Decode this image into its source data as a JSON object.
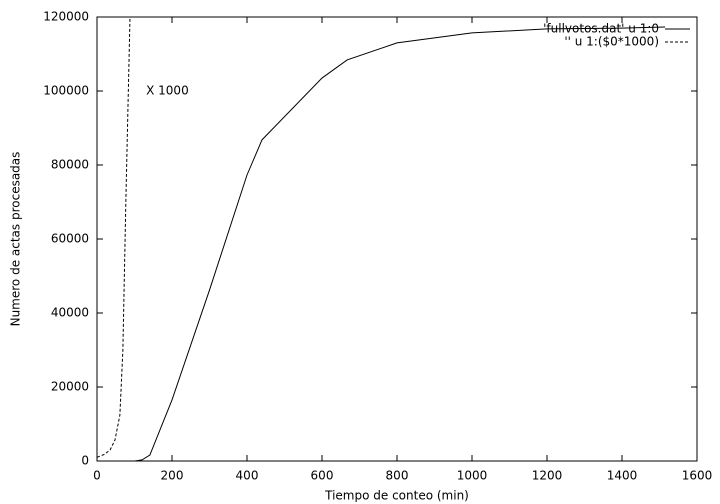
{
  "chart_data": {
    "type": "line",
    "xlabel": "Tiempo de conteo (min)",
    "ylabel": "Numero de actas procesadas",
    "annotation": {
      "text": "X 1000",
      "x": 131,
      "y": 100000
    },
    "legend": "top right",
    "xlim": [
      0,
      1600
    ],
    "xticks": [
      0,
      200,
      400,
      600,
      800,
      1000,
      1200,
      1400,
      1600
    ],
    "ylim": [
      0,
      120000
    ],
    "yticks": [
      0,
      20000,
      40000,
      60000,
      80000,
      100000,
      120000
    ],
    "series": [
      {
        "name": "'fullvotos.dat' u 1:0",
        "color": "#000000",
        "dashed": false,
        "x": [
          101,
          120,
          141,
          200,
          300,
          400,
          440,
          600,
          667,
          800,
          1000,
          1200,
          1400,
          1515
        ],
        "values": [
          0,
          300,
          1600,
          16500,
          46200,
          77300,
          86800,
          103500,
          108400,
          113000,
          115700,
          116800,
          117000,
          117300
        ]
      },
      {
        "name": "'' u 1:($0*1000)",
        "color": "#000000",
        "dashed": true,
        "x": [
          0,
          20,
          35,
          48,
          61,
          69,
          77,
          88
        ],
        "values": [
          1000,
          1800,
          3000,
          5700,
          12400,
          30000,
          70500,
          120000
        ]
      }
    ]
  }
}
